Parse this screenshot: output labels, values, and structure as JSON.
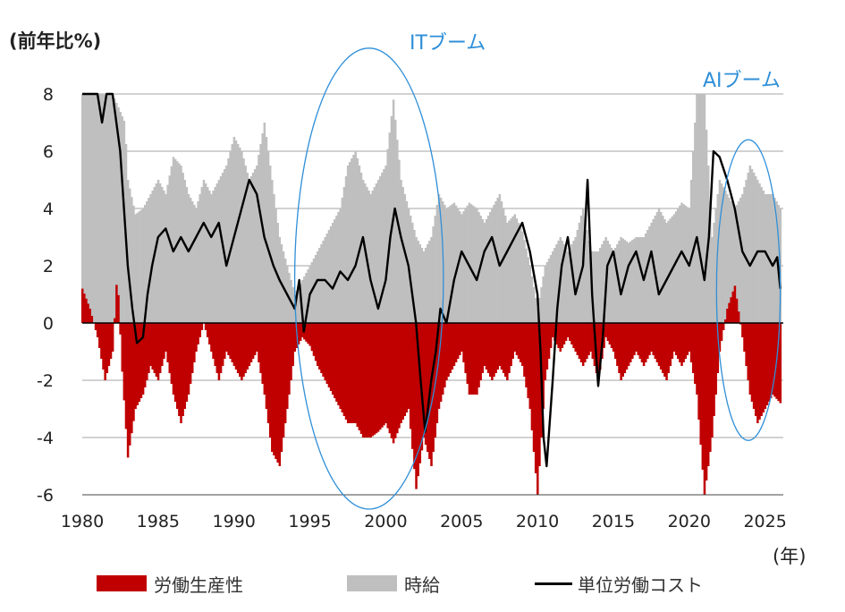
{
  "chart_data": {
    "type": "bar+line",
    "ylabel": "(前年比%)",
    "xunit": "(年)",
    "ylim": [
      -6,
      8
    ],
    "xlim": [
      1980,
      2026.2
    ],
    "yticks": [
      "8",
      "6",
      "4",
      "2",
      "0",
      "-2",
      "-4",
      "-6"
    ],
    "ytick_values": [
      8,
      6,
      4,
      2,
      0,
      -2,
      -4,
      -6
    ],
    "xticks": [
      "1980",
      "1985",
      "1990",
      "1995",
      "2000",
      "2005",
      "2010",
      "2015",
      "2020",
      "2025"
    ],
    "xtick_values": [
      1980,
      1985,
      1990,
      1995,
      2000,
      2005,
      2010,
      2015,
      2020,
      2025
    ],
    "annotations": [
      {
        "text": "ITブーム",
        "period": [
          1994.0,
          2003.8
        ]
      },
      {
        "text": "AIブーム",
        "period": [
          2021.8,
          2026.0
        ]
      }
    ],
    "legend": [
      "労働生産性",
      "時給",
      "単位労働コスト"
    ],
    "colors": {
      "productivity": "#c00000",
      "hourly_wage": "#bfbfbf",
      "ulc": "#000000",
      "annotation": "#2f8fd8",
      "grid": "#a6a6a6"
    },
    "series": {
      "productivity": {
        "name": "労働生産性",
        "points": [
          [
            1980,
            1.2
          ],
          [
            1980.5,
            0.5
          ],
          [
            1981,
            -0.5
          ],
          [
            1981.5,
            -2
          ],
          [
            1982,
            -1
          ],
          [
            1982.3,
            1.8
          ],
          [
            1982.6,
            -1.5
          ],
          [
            1983,
            -4.7
          ],
          [
            1983.5,
            -3
          ],
          [
            1984,
            -2.5
          ],
          [
            1984.5,
            -1.5
          ],
          [
            1985,
            -2
          ],
          [
            1985.5,
            -1
          ],
          [
            1986,
            -2.5
          ],
          [
            1986.5,
            -3.5
          ],
          [
            1987,
            -2.5
          ],
          [
            1987.5,
            -1
          ],
          [
            1988,
            0
          ],
          [
            1988.5,
            -1
          ],
          [
            1989,
            -2
          ],
          [
            1989.5,
            -1
          ],
          [
            1990,
            -1.5
          ],
          [
            1990.5,
            -2
          ],
          [
            1991,
            -1.5
          ],
          [
            1991.5,
            -1
          ],
          [
            1992,
            -2.5
          ],
          [
            1992.5,
            -4.5
          ],
          [
            1993,
            -5
          ],
          [
            1993.5,
            -3
          ],
          [
            1994,
            -1
          ],
          [
            1994.5,
            -0.5
          ],
          [
            1995,
            -0.8
          ],
          [
            1995.5,
            -1.5
          ],
          [
            1996,
            -2
          ],
          [
            1996.5,
            -2.5
          ],
          [
            1997,
            -3
          ],
          [
            1997.5,
            -3.5
          ],
          [
            1998,
            -3.5
          ],
          [
            1998.5,
            -4
          ],
          [
            1999,
            -4
          ],
          [
            1999.5,
            -3.8
          ],
          [
            2000,
            -3.5
          ],
          [
            2000.5,
            -4.2
          ],
          [
            2001,
            -3.5
          ],
          [
            2001.5,
            -3
          ],
          [
            2002,
            -5.8
          ],
          [
            2002.5,
            -4
          ],
          [
            2003,
            -5
          ],
          [
            2003.5,
            -3
          ],
          [
            2004,
            -2
          ],
          [
            2004.5,
            -1.5
          ],
          [
            2005,
            -1
          ],
          [
            2005.5,
            -2.5
          ],
          [
            2006,
            -2.5
          ],
          [
            2006.5,
            -1.5
          ],
          [
            2007,
            -2
          ],
          [
            2007.5,
            -1.5
          ],
          [
            2008,
            -2
          ],
          [
            2008.5,
            -1
          ],
          [
            2009,
            -1.5
          ],
          [
            2009.5,
            -3
          ],
          [
            2010,
            -6
          ],
          [
            2010.5,
            -2
          ],
          [
            2011,
            -0.5
          ],
          [
            2011.5,
            -1
          ],
          [
            2012,
            -0.5
          ],
          [
            2012.5,
            -1
          ],
          [
            2013,
            -1.5
          ],
          [
            2013.5,
            -1
          ],
          [
            2014,
            -2
          ],
          [
            2014.5,
            -0.5
          ],
          [
            2015,
            -1
          ],
          [
            2015.5,
            -2
          ],
          [
            2016,
            -1.5
          ],
          [
            2016.5,
            -1
          ],
          [
            2017,
            -1.5
          ],
          [
            2017.5,
            -1
          ],
          [
            2018,
            -1.5
          ],
          [
            2018.5,
            -2
          ],
          [
            2019,
            -1
          ],
          [
            2019.5,
            -1.5
          ],
          [
            2020,
            -1
          ],
          [
            2020.5,
            -2.5
          ],
          [
            2021,
            -6
          ],
          [
            2021.5,
            -4
          ],
          [
            2022,
            -1
          ],
          [
            2022.5,
            0.5
          ],
          [
            2023,
            1.3
          ],
          [
            2023.5,
            -0.5
          ],
          [
            2024,
            -2.5
          ],
          [
            2024.5,
            -3.5
          ],
          [
            2025,
            -3
          ],
          [
            2025.5,
            -2.5
          ],
          [
            2026,
            -2.8
          ]
        ]
      },
      "hourly_wage": {
        "name": "時給",
        "points": [
          [
            1980,
            8
          ],
          [
            1981,
            8
          ],
          [
            1982,
            8
          ],
          [
            1982.8,
            7
          ],
          [
            1983,
            5
          ],
          [
            1983.5,
            3.8
          ],
          [
            1984,
            4
          ],
          [
            1984.5,
            4.5
          ],
          [
            1985,
            5
          ],
          [
            1985.5,
            4.5
          ],
          [
            1986,
            5.8
          ],
          [
            1986.5,
            5.5
          ],
          [
            1987,
            4.5
          ],
          [
            1987.5,
            4
          ],
          [
            1988,
            5
          ],
          [
            1988.5,
            4.5
          ],
          [
            1989,
            5
          ],
          [
            1989.5,
            5.5
          ],
          [
            1990,
            6.5
          ],
          [
            1990.5,
            6
          ],
          [
            1991,
            5
          ],
          [
            1991.5,
            5.5
          ],
          [
            1992,
            7
          ],
          [
            1992.5,
            5
          ],
          [
            1993,
            3
          ],
          [
            1993.5,
            2
          ],
          [
            1994,
            1
          ],
          [
            1994.5,
            1.5
          ],
          [
            1995,
            2
          ],
          [
            1995.5,
            2.5
          ],
          [
            1996,
            3
          ],
          [
            1996.5,
            3.5
          ],
          [
            1997,
            4
          ],
          [
            1997.5,
            5.5
          ],
          [
            1998,
            6
          ],
          [
            1998.5,
            5
          ],
          [
            1999,
            4.5
          ],
          [
            1999.5,
            5
          ],
          [
            2000,
            5.5
          ],
          [
            2000.5,
            7.8
          ],
          [
            2001,
            5
          ],
          [
            2001.5,
            4
          ],
          [
            2002,
            3
          ],
          [
            2002.5,
            2.5
          ],
          [
            2003,
            3
          ],
          [
            2003.5,
            4.5
          ],
          [
            2004,
            4
          ],
          [
            2004.5,
            4.2
          ],
          [
            2005,
            3.8
          ],
          [
            2005.5,
            4.2
          ],
          [
            2006,
            4
          ],
          [
            2006.5,
            3.5
          ],
          [
            2007,
            4
          ],
          [
            2007.5,
            4.5
          ],
          [
            2008,
            3.5
          ],
          [
            2008.5,
            3.8
          ],
          [
            2009,
            3.2
          ],
          [
            2009.5,
            2
          ],
          [
            2010,
            0.5
          ],
          [
            2010.5,
            2
          ],
          [
            2011,
            2.5
          ],
          [
            2011.5,
            3
          ],
          [
            2012,
            2.5
          ],
          [
            2012.5,
            3
          ],
          [
            2013,
            4
          ],
          [
            2013.5,
            2.5
          ],
          [
            2014,
            2.5
          ],
          [
            2014.5,
            3
          ],
          [
            2015,
            2.5
          ],
          [
            2015.5,
            3
          ],
          [
            2016,
            2.8
          ],
          [
            2016.5,
            3
          ],
          [
            2017,
            3
          ],
          [
            2017.5,
            3.5
          ],
          [
            2018,
            4
          ],
          [
            2018.5,
            3.5
          ],
          [
            2019,
            3.8
          ],
          [
            2019.5,
            4.2
          ],
          [
            2020,
            4
          ],
          [
            2020.5,
            8
          ],
          [
            2021,
            8
          ],
          [
            2021.5,
            3
          ],
          [
            2022,
            5
          ],
          [
            2022.5,
            4.5
          ],
          [
            2023,
            4
          ],
          [
            2023.5,
            4.5
          ],
          [
            2024,
            5.5
          ],
          [
            2024.5,
            5
          ],
          [
            2025,
            4.5
          ],
          [
            2025.5,
            4.5
          ],
          [
            2026,
            4
          ]
        ]
      },
      "unit_labor_cost": {
        "name": "単位労働コスト",
        "points": [
          [
            1980,
            8
          ],
          [
            1981,
            8
          ],
          [
            1981.3,
            7
          ],
          [
            1981.6,
            8
          ],
          [
            1982,
            8
          ],
          [
            1982.5,
            6
          ],
          [
            1983,
            2
          ],
          [
            1983.3,
            0.5
          ],
          [
            1983.6,
            -0.7
          ],
          [
            1984,
            -0.5
          ],
          [
            1984.3,
            1
          ],
          [
            1984.6,
            2
          ],
          [
            1985,
            3
          ],
          [
            1985.5,
            3.3
          ],
          [
            1986,
            2.5
          ],
          [
            1986.5,
            3
          ],
          [
            1987,
            2.5
          ],
          [
            1987.5,
            3
          ],
          [
            1988,
            3.5
          ],
          [
            1988.5,
            3
          ],
          [
            1989,
            3.5
          ],
          [
            1989.5,
            2
          ],
          [
            1990,
            3
          ],
          [
            1990.5,
            4
          ],
          [
            1991,
            5
          ],
          [
            1991.5,
            4.5
          ],
          [
            1992,
            3
          ],
          [
            1992.3,
            2.5
          ],
          [
            1992.6,
            2
          ],
          [
            1993,
            1.5
          ],
          [
            1993.5,
            1
          ],
          [
            1994,
            0.5
          ],
          [
            1994.3,
            1.5
          ],
          [
            1994.6,
            -0.3
          ],
          [
            1995,
            1
          ],
          [
            1995.5,
            1.5
          ],
          [
            1996,
            1.5
          ],
          [
            1996.5,
            1.2
          ],
          [
            1997,
            1.8
          ],
          [
            1997.5,
            1.5
          ],
          [
            1998,
            2
          ],
          [
            1998.5,
            3
          ],
          [
            1999,
            1.5
          ],
          [
            1999.5,
            0.5
          ],
          [
            2000,
            1.5
          ],
          [
            2000.3,
            3
          ],
          [
            2000.6,
            4
          ],
          [
            2001,
            3
          ],
          [
            2001.5,
            2
          ],
          [
            2002,
            0
          ],
          [
            2002.3,
            -2
          ],
          [
            2002.6,
            -3.8
          ],
          [
            2003,
            -2
          ],
          [
            2003.3,
            -1
          ],
          [
            2003.6,
            0.5
          ],
          [
            2004,
            0
          ],
          [
            2004.5,
            1.5
          ],
          [
            2005,
            2.5
          ],
          [
            2005.5,
            2
          ],
          [
            2006,
            1.5
          ],
          [
            2006.5,
            2.5
          ],
          [
            2007,
            3
          ],
          [
            2007.5,
            2
          ],
          [
            2008,
            2.5
          ],
          [
            2008.5,
            3
          ],
          [
            2009,
            3.5
          ],
          [
            2009.5,
            2.5
          ],
          [
            2010,
            1
          ],
          [
            2010.2,
            -1
          ],
          [
            2010.4,
            -4
          ],
          [
            2010.6,
            -5
          ],
          [
            2011,
            -2
          ],
          [
            2011.3,
            0.5
          ],
          [
            2011.6,
            2
          ],
          [
            2012,
            3
          ],
          [
            2012.5,
            1
          ],
          [
            2013,
            2
          ],
          [
            2013.3,
            5
          ],
          [
            2013.6,
            1
          ],
          [
            2014,
            -2.2
          ],
          [
            2014.3,
            -0.5
          ],
          [
            2014.6,
            2
          ],
          [
            2015,
            2.5
          ],
          [
            2015.5,
            1
          ],
          [
            2016,
            2
          ],
          [
            2016.5,
            2.5
          ],
          [
            2017,
            1.5
          ],
          [
            2017.5,
            2.5
          ],
          [
            2018,
            1
          ],
          [
            2018.5,
            1.5
          ],
          [
            2019,
            2
          ],
          [
            2019.5,
            2.5
          ],
          [
            2020,
            2
          ],
          [
            2020.5,
            3
          ],
          [
            2021,
            1.5
          ],
          [
            2021.3,
            3
          ],
          [
            2021.6,
            6
          ],
          [
            2022,
            5.8
          ],
          [
            2022.5,
            5
          ],
          [
            2023,
            4
          ],
          [
            2023.5,
            2.5
          ],
          [
            2024,
            2
          ],
          [
            2024.5,
            2.5
          ],
          [
            2025,
            2.5
          ],
          [
            2025.5,
            2
          ],
          [
            2025.8,
            2.3
          ],
          [
            2026,
            1.2
          ]
        ]
      }
    }
  }
}
